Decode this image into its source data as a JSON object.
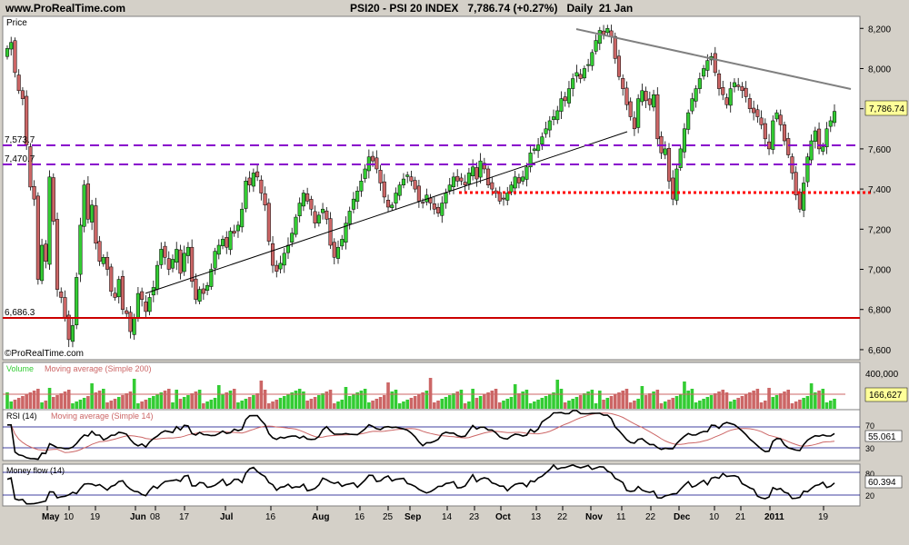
{
  "header": {
    "site": "www.ProRealTime.com",
    "instrument": "PSI20 - PSI 20 INDEX",
    "last_change": "7,786.74 (+0.27%)",
    "period": "Daily  21 Jan"
  },
  "colors": {
    "background": "#d4d0c8",
    "panel": "#ffffff",
    "up_candle": "#33cc33",
    "down_candle": "#cc6666",
    "support_line": "#cc0000",
    "dashed_levels": "#8800cc",
    "trendline": "#000000",
    "resistance_trend": "#808080",
    "value_box": "#ffff99"
  },
  "price_panel": {
    "label": "Price",
    "last_value": "7,786.74",
    "watermark": "©ProRealTime.com",
    "levels": [
      {
        "label": "7,573.7",
        "value": 7573.7
      },
      {
        "label": "7,470.7",
        "value": 7470.7
      },
      {
        "label": "6,686.3",
        "value": 6686.3
      }
    ],
    "y_ticks": [
      "8,200",
      "8,000",
      "7,800",
      "7,600",
      "7,400",
      "7,200",
      "7,000",
      "6,800",
      "6,600"
    ]
  },
  "volume_panel": {
    "label": "Volume",
    "ma_label": "Moving average (Simple 200)",
    "top_tick": "400,000",
    "last_value": "166,627"
  },
  "rsi_panel": {
    "label": "RSI (14)",
    "ma_label": "Moving average (Simple 14)",
    "tick_top": "70",
    "tick_bottom": "30",
    "last_value": "55.061"
  },
  "mf_panel": {
    "label": "Money flow (14)",
    "tick_top": "80",
    "tick_bottom": "20",
    "last_value": "60.394"
  },
  "x_axis": {
    "labels": [
      "May",
      "10",
      "19",
      "Jun",
      "08",
      "17",
      "Jul",
      "16",
      "Aug",
      "16",
      "25",
      "Sep",
      "14",
      "23",
      "Oct",
      "13",
      "22",
      "Nov",
      "11",
      "22",
      "Dec",
      "10",
      "21",
      "2011",
      "19"
    ]
  },
  "chart_data": {
    "type": "candlestick",
    "title": "PSI20 - PSI 20 INDEX",
    "period": "Daily",
    "ylim": [
      6550,
      8260
    ],
    "last_close": 7786.74,
    "change_pct": 0.27,
    "closes": [
      8100,
      8130,
      7980,
      7890,
      7850,
      7620,
      7410,
      7350,
      6950,
      7120,
      7040,
      7460,
      7240,
      6900,
      6860,
      6760,
      6650,
      6720,
      6960,
      7220,
      7420,
      7250,
      7320,
      7130,
      7040,
      7060,
      7000,
      6890,
      6860,
      6950,
      6800,
      6780,
      6690,
      6760,
      6880,
      6850,
      6790,
      6860,
      6910,
      7020,
      7100,
      7060,
      7000,
      7050,
      7100,
      6980,
      7080,
      7110,
      6940,
      6850,
      6900,
      6880,
      6920,
      7000,
      7090,
      7120,
      7150,
      7110,
      7190,
      7180,
      7220,
      7300,
      7440,
      7420,
      7480,
      7460,
      7380,
      7320,
      7140,
      7020,
      6990,
      7030,
      7080,
      7120,
      7180,
      7260,
      7330,
      7380,
      7340,
      7300,
      7230,
      7270,
      7300,
      7250,
      7120,
      7060,
      7110,
      7150,
      7230,
      7290,
      7350,
      7390,
      7440,
      7500,
      7560,
      7540,
      7500,
      7430,
      7360,
      7310,
      7320,
      7380,
      7420,
      7450,
      7470,
      7440,
      7400,
      7340,
      7330,
      7370,
      7330,
      7300,
      7280,
      7330,
      7380,
      7420,
      7460,
      7440,
      7440,
      7420,
      7480,
      7510,
      7450,
      7540,
      7500,
      7420,
      7400,
      7380,
      7340,
      7350,
      7380,
      7420,
      7460,
      7430,
      7460,
      7510,
      7580,
      7600,
      7620,
      7660,
      7700,
      7740,
      7760,
      7790,
      7850,
      7840,
      7900,
      7950,
      7980,
      7950,
      8000,
      8020,
      8080,
      8140,
      8190,
      8170,
      8200,
      8160,
      8050,
      7960,
      7900,
      7820,
      7760,
      7700,
      7850,
      7890,
      7840,
      7820,
      7870,
      7650,
      7580,
      7600,
      7440,
      7350,
      7500,
      7600,
      7700,
      7780,
      7850,
      7900,
      7950,
      8000,
      8040,
      8060,
      7980,
      7900,
      7870,
      7820,
      7900,
      7930,
      7910,
      7890,
      7860,
      7800,
      7780,
      7760,
      7720,
      7650,
      7600,
      7740,
      7780,
      7720,
      7640,
      7570,
      7480,
      7370,
      7300,
      7430,
      7560,
      7640,
      7690,
      7600,
      7610,
      7700,
      7740,
      7786.74
    ]
  }
}
